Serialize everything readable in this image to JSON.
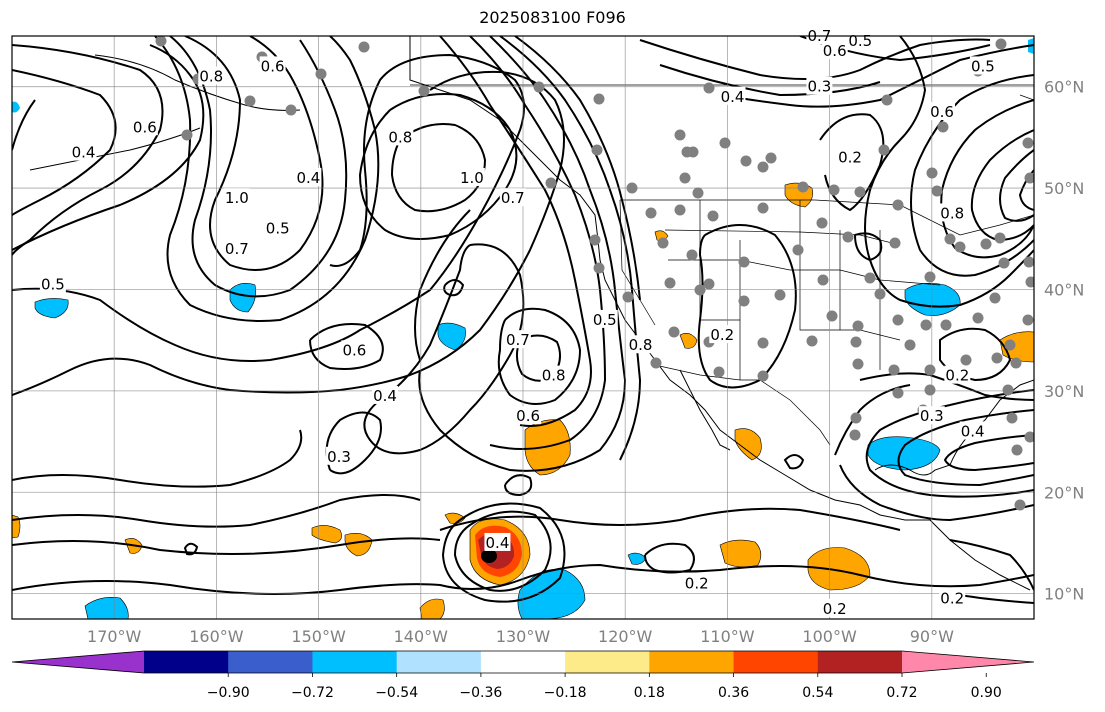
{
  "title": "2025083100 F096",
  "map": {
    "lon_range": [
      -180,
      -80
    ],
    "lat_range": [
      7.5,
      65
    ],
    "lon_ticks": [
      {
        "lon": -170,
        "label": "170°W"
      },
      {
        "lon": -160,
        "label": "160°W"
      },
      {
        "lon": -150,
        "label": "150°W"
      },
      {
        "lon": -140,
        "label": "140°W"
      },
      {
        "lon": -130,
        "label": "130°W"
      },
      {
        "lon": -120,
        "label": "120°W"
      },
      {
        "lon": -110,
        "label": "110°W"
      },
      {
        "lon": -100,
        "label": "100°W"
      },
      {
        "lon": -90,
        "label": "90°W"
      }
    ],
    "lat_ticks": [
      {
        "lat": 60,
        "label": "60°N"
      },
      {
        "lat": 50,
        "label": "50°N"
      },
      {
        "lat": 40,
        "label": "40°N"
      },
      {
        "lat": 30,
        "label": "30°N"
      },
      {
        "lat": 20,
        "label": "20°N"
      },
      {
        "lat": 10,
        "label": "10°N"
      }
    ],
    "grid": true
  },
  "colorbar": {
    "colors": [
      "#9932cc",
      "#00008b",
      "#3a5fcd",
      "#00bfff",
      "#b0e2ff",
      "#ffffff",
      "#fdeb8a",
      "#ffa500",
      "#ff4500",
      "#b22222",
      "#ff88aa"
    ],
    "labels": [
      "−0.90",
      "−0.72",
      "−0.54",
      "−0.36",
      "−0.18",
      "0.18",
      "0.36",
      "0.54",
      "0.72",
      "0.90"
    ]
  },
  "contour_labels": [
    {
      "text": "0.8",
      "lon": -160.5,
      "lat": 61
    },
    {
      "text": "0.6",
      "lon": -154.5,
      "lat": 62
    },
    {
      "text": "0.6",
      "lon": -167,
      "lat": 56
    },
    {
      "text": "0.4",
      "lon": -173,
      "lat": 53.5
    },
    {
      "text": "0.5",
      "lon": -176,
      "lat": 40.5
    },
    {
      "text": "1.0",
      "lon": -158,
      "lat": 49
    },
    {
      "text": "0.7",
      "lon": -158,
      "lat": 44
    },
    {
      "text": "0.5",
      "lon": -154,
      "lat": 46
    },
    {
      "text": "0.4",
      "lon": -151,
      "lat": 51
    },
    {
      "text": "0.8",
      "lon": -142,
      "lat": 55
    },
    {
      "text": "1.0",
      "lon": -135,
      "lat": 51
    },
    {
      "text": "0.7",
      "lon": -131,
      "lat": 49
    },
    {
      "text": "0.6",
      "lon": -146.5,
      "lat": 34
    },
    {
      "text": "0.4",
      "lon": -143.5,
      "lat": 29.5
    },
    {
      "text": "0.3",
      "lon": -148,
      "lat": 23.5
    },
    {
      "text": "0.7",
      "lon": -130.5,
      "lat": 35
    },
    {
      "text": "0.8",
      "lon": -127,
      "lat": 31.5
    },
    {
      "text": "0.6",
      "lon": -129.5,
      "lat": 27.5
    },
    {
      "text": "0.5",
      "lon": -122,
      "lat": 37
    },
    {
      "text": "0.8",
      "lon": -118.5,
      "lat": 34.5
    },
    {
      "text": "0.2",
      "lon": -110.5,
      "lat": 35.5
    },
    {
      "text": "0.4",
      "lon": -109.5,
      "lat": 59
    },
    {
      "text": "0.3",
      "lon": -101,
      "lat": 60
    },
    {
      "text": "0.2",
      "lon": -98,
      "lat": 53
    },
    {
      "text": "0.6",
      "lon": -99.5,
      "lat": 63.5
    },
    {
      "text": "0.5",
      "lon": -97,
      "lat": 64.5
    },
    {
      "text": "0.5",
      "lon": -85,
      "lat": 62
    },
    {
      "text": "0.6",
      "lon": -89,
      "lat": 57.5
    },
    {
      "text": "0.8",
      "lon": -88,
      "lat": 47.5
    },
    {
      "text": "0.3",
      "lon": -90,
      "lat": 27.5
    },
    {
      "text": "0.4",
      "lon": -86,
      "lat": 26
    },
    {
      "text": "0.2",
      "lon": -87.5,
      "lat": 31.5
    },
    {
      "text": "0.4",
      "lon": -132.5,
      "lat": 15
    },
    {
      "text": "0.2",
      "lon": -113,
      "lat": 11
    },
    {
      "text": "0.2",
      "lon": -99.5,
      "lat": 8.5
    },
    {
      "text": "0.2",
      "lon": -88,
      "lat": 9.5
    },
    {
      "text": "0.7",
      "lon": -101,
      "lat": 65
    }
  ]
}
